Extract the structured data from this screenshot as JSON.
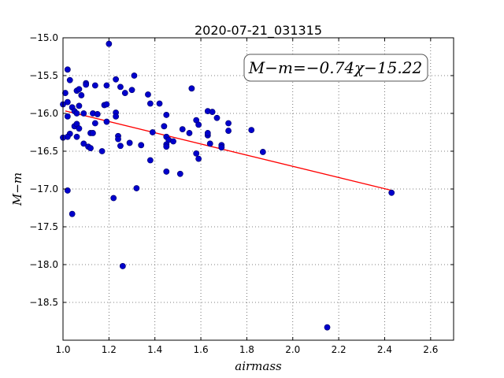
{
  "chart_data": {
    "type": "scatter",
    "title": "2020-07-21_031315",
    "xlabel": "airmass",
    "ylabel": "M−m",
    "xlim": [
      1.0,
      2.7
    ],
    "ylim": [
      -19.0,
      -15.0
    ],
    "y_inverted": true,
    "xticks": [
      "1.0",
      "1.2",
      "1.4",
      "1.6",
      "1.8",
      "2.0",
      "2.2",
      "2.4",
      "2.6"
    ],
    "yticks": [
      "−15.0",
      "−15.5",
      "−16.0",
      "−16.5",
      "−17.0",
      "−17.5",
      "−18.0",
      "−18.5"
    ],
    "grid": true,
    "annotation": "M−m=−0.74χ−15.22",
    "colors": {
      "points": "#0000cc",
      "fit_line": "#ff0000"
    },
    "fit": {
      "slope": -0.74,
      "intercept": -15.22,
      "x_range": [
        1.01,
        2.43
      ]
    },
    "points": [
      [
        1.2,
        -15.08
      ],
      [
        1.02,
        -15.42
      ],
      [
        1.03,
        -15.56
      ],
      [
        1.01,
        -15.73
      ],
      [
        1.02,
        -15.85
      ],
      [
        1.0,
        -15.88
      ],
      [
        1.02,
        -16.04
      ],
      [
        1.04,
        -15.92
      ],
      [
        1.05,
        -15.97
      ],
      [
        1.06,
        -16.0
      ],
      [
        1.06,
        -15.7
      ],
      [
        1.07,
        -15.68
      ],
      [
        1.08,
        -15.76
      ],
      [
        1.1,
        -15.6
      ],
      [
        1.1,
        -15.62
      ],
      [
        1.07,
        -15.9
      ],
      [
        1.09,
        -16.0
      ],
      [
        1.05,
        -16.17
      ],
      [
        1.06,
        -16.14
      ],
      [
        1.07,
        -16.2
      ],
      [
        1.06,
        -16.31
      ],
      [
        1.03,
        -16.27
      ],
      [
        1.02,
        -16.31
      ],
      [
        1.0,
        -16.32
      ],
      [
        1.09,
        -16.4
      ],
      [
        1.11,
        -16.44
      ],
      [
        1.12,
        -16.46
      ],
      [
        1.12,
        -16.26
      ],
      [
        1.13,
        -16.26
      ],
      [
        1.14,
        -16.13
      ],
      [
        1.13,
        -16.0
      ],
      [
        1.15,
        -16.01
      ],
      [
        1.14,
        -15.63
      ],
      [
        1.17,
        -16.5
      ],
      [
        1.18,
        -15.89
      ],
      [
        1.19,
        -15.88
      ],
      [
        1.19,
        -15.63
      ],
      [
        1.19,
        -16.11
      ],
      [
        1.23,
        -15.55
      ],
      [
        1.23,
        -15.99
      ],
      [
        1.23,
        -16.04
      ],
      [
        1.25,
        -15.65
      ],
      [
        1.27,
        -15.73
      ],
      [
        1.24,
        -16.3
      ],
      [
        1.24,
        -16.34
      ],
      [
        1.25,
        -16.43
      ],
      [
        1.29,
        -16.39
      ],
      [
        1.3,
        -15.69
      ],
      [
        1.31,
        -15.5
      ],
      [
        1.34,
        -16.42
      ],
      [
        1.37,
        -15.75
      ],
      [
        1.38,
        -15.87
      ],
      [
        1.39,
        -16.25
      ],
      [
        1.38,
        -16.62
      ],
      [
        1.42,
        -15.87
      ],
      [
        1.45,
        -16.02
      ],
      [
        1.44,
        -16.17
      ],
      [
        1.45,
        -16.31
      ],
      [
        1.46,
        -16.35
      ],
      [
        1.48,
        -16.37
      ],
      [
        1.45,
        -16.41
      ],
      [
        1.45,
        -16.44
      ],
      [
        1.45,
        -16.77
      ],
      [
        1.52,
        -16.21
      ],
      [
        1.51,
        -16.8
      ],
      [
        1.55,
        -16.26
      ],
      [
        1.56,
        -15.67
      ],
      [
        1.58,
        -16.09
      ],
      [
        1.59,
        -16.15
      ],
      [
        1.58,
        -16.53
      ],
      [
        1.59,
        -16.6
      ],
      [
        1.63,
        -15.97
      ],
      [
        1.65,
        -15.98
      ],
      [
        1.63,
        -16.29
      ],
      [
        1.63,
        -16.26
      ],
      [
        1.64,
        -16.4
      ],
      [
        1.67,
        -16.06
      ],
      [
        1.69,
        -16.42
      ],
      [
        1.69,
        -16.45
      ],
      [
        1.72,
        -16.13
      ],
      [
        1.72,
        -16.23
      ],
      [
        1.82,
        -16.22
      ],
      [
        1.87,
        -16.51
      ],
      [
        1.02,
        -17.02
      ],
      [
        1.22,
        -17.12
      ],
      [
        1.32,
        -16.99
      ],
      [
        1.04,
        -17.33
      ],
      [
        1.26,
        -18.02
      ],
      [
        2.15,
        -18.83
      ],
      [
        2.43,
        -17.05
      ]
    ]
  }
}
